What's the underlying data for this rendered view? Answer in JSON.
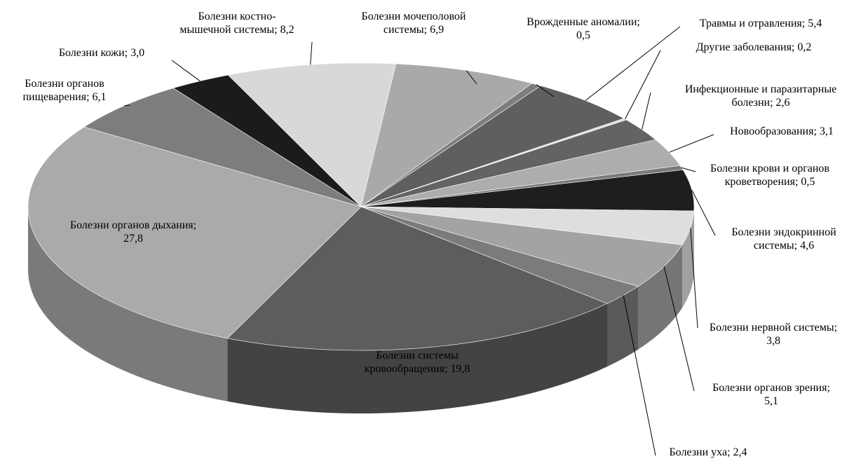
{
  "chart_data": {
    "type": "pie",
    "title": "",
    "style": "3d",
    "slices": [
      {
        "category": "Болезни мочеполовой системы",
        "label_lines": [
          "Болезни мочеполовой",
          "системы; 6,9"
        ],
        "value": 6.9,
        "color": "#a9a9a9"
      },
      {
        "category": "Врожденные аномалии",
        "label_lines": [
          "Врожденные аномалии;",
          "0,5"
        ],
        "value": 0.5,
        "color": "#7e7e7e"
      },
      {
        "category": "Травмы и отравления",
        "label_lines": [
          "Травмы и отравления; 5,4"
        ],
        "value": 5.4,
        "color": "#5f5f5f"
      },
      {
        "category": "Другие заболевания",
        "label_lines": [
          "Другие заболевания; 0,2"
        ],
        "value": 0.2,
        "color": "#e0e0e0"
      },
      {
        "category": "Инфекционные и паразитарные болезни",
        "label_lines": [
          "Инфекционные и паразитарные",
          "болезни; 2,6"
        ],
        "value": 2.6,
        "color": "#636363"
      },
      {
        "category": "Новообразования",
        "label_lines": [
          "Новообразования; 3,1"
        ],
        "value": 3.1,
        "color": "#adadad"
      },
      {
        "category": "Болезни крови и органов кроветворения",
        "label_lines": [
          "Болезни крови и органов",
          "кроветворения; 0,5"
        ],
        "value": 0.5,
        "color": "#7a7a7a"
      },
      {
        "category": "Болезни эндокринной системы",
        "label_lines": [
          "Болезни эндокринной",
          "системы; 4,6"
        ],
        "value": 4.6,
        "color": "#1e1e1e"
      },
      {
        "category": "Болезни нервной системы",
        "label_lines": [
          "Болезни нервной системы;",
          "3,8"
        ],
        "value": 3.8,
        "color": "#dedede"
      },
      {
        "category": "Болезни органов зрения",
        "label_lines": [
          "Болезни органов зрения;",
          "5,1"
        ],
        "value": 5.1,
        "color": "#a3a3a3"
      },
      {
        "category": "Болезни уха",
        "label_lines": [
          "Болезни уха; 2,4"
        ],
        "value": 2.4,
        "color": "#7b7b7b"
      },
      {
        "category": "Болезни системы кровообращения",
        "label_lines": [
          "Болезни системы",
          "кровообращения; 19,8"
        ],
        "value": 19.8,
        "color": "#5d5d5d"
      },
      {
        "category": "Болезни органов дыхания",
        "label_lines": [
          "Болезни органов дыхания;",
          "27,8"
        ],
        "value": 27.8,
        "color": "#aaaaaa"
      },
      {
        "category": "Болезни органов пищеварения",
        "label_lines": [
          "Болезни органов",
          "пищеварения; 6,1"
        ],
        "value": 6.1,
        "color": "#7d7d7d"
      },
      {
        "category": "Болезни кожи",
        "label_lines": [
          "Болезни кожи; 3,0"
        ],
        "value": 3.0,
        "color": "#1b1b1b"
      },
      {
        "category": "Болезни костно-мышечной системы",
        "label_lines": [
          "Болезни костно-",
          "мышечной системы; 8,2"
        ],
        "value": 8.2,
        "color": "#d8d8d8"
      }
    ]
  }
}
